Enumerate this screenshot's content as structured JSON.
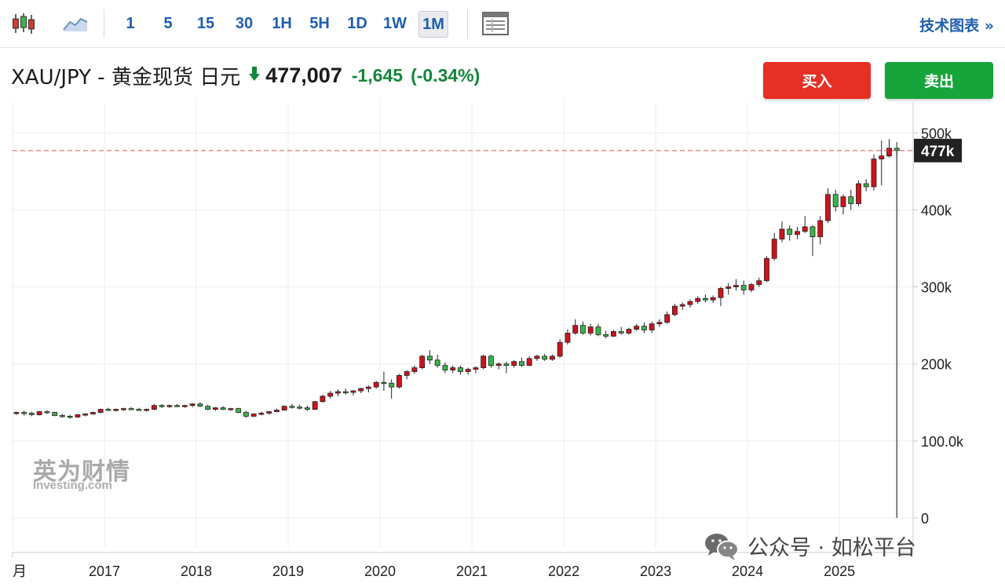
{
  "toolbar": {
    "timeframes": [
      "1",
      "5",
      "15",
      "30",
      "1H",
      "5H",
      "1D",
      "1W",
      "1M"
    ],
    "active_timeframe": "1M",
    "tech_link": "技术图表 »"
  },
  "instrument": {
    "name": "XAU/JPY - 黄金现货 日元",
    "price": "477,007",
    "change": "-1,645",
    "change_pct": "(-0.34%)",
    "direction": "down"
  },
  "actions": {
    "buy": "买入",
    "sell": "卖出"
  },
  "colors": {
    "up": "#17a43a",
    "down": "#d0121b",
    "accent": "#1f5fad",
    "price_tag": "#222222"
  },
  "watermark": {
    "brand": "英为财情",
    "sub": "Investing.com"
  },
  "wechat": {
    "label": "公众号 · 如松平台"
  },
  "chart_data": {
    "type": "candlestick",
    "interval": "1M",
    "price_tag": "477k",
    "y_ticks": [
      "0",
      "100.0k",
      "200k",
      "300k",
      "400k",
      "500k"
    ],
    "y_tick_values": [
      0,
      100000,
      200000,
      300000,
      400000,
      500000
    ],
    "x_ticks": [
      "月",
      "2017",
      "2018",
      "2019",
      "2020",
      "2021",
      "2022",
      "2023",
      "2024",
      "2025"
    ],
    "x_tick_values": [
      2016.0,
      2017.0,
      2018.0,
      2019.0,
      2020.0,
      2021.0,
      2022.0,
      2023.0,
      2024.0,
      2025.0
    ],
    "ylim": [
      0,
      540000
    ],
    "start": "2016-01",
    "grid": true,
    "candles": [
      [
        136000,
        138000,
        134000,
        137000
      ],
      [
        137000,
        139000,
        133000,
        136000
      ],
      [
        136000,
        138000,
        132000,
        134000
      ],
      [
        134000,
        139000,
        133000,
        138000
      ],
      [
        138000,
        140000,
        135000,
        137000
      ],
      [
        137000,
        138000,
        132000,
        133000
      ],
      [
        133000,
        135000,
        130000,
        132000
      ],
      [
        132000,
        134000,
        129000,
        131000
      ],
      [
        131000,
        135000,
        130000,
        134000
      ],
      [
        134000,
        136000,
        132000,
        135000
      ],
      [
        135000,
        138000,
        134000,
        137000
      ],
      [
        137000,
        142000,
        136000,
        141000
      ],
      [
        141000,
        143000,
        139000,
        140000
      ],
      [
        140000,
        142000,
        138000,
        141000
      ],
      [
        141000,
        143000,
        139000,
        142000
      ],
      [
        142000,
        144000,
        140000,
        141000
      ],
      [
        141000,
        143000,
        139000,
        140000
      ],
      [
        140000,
        142000,
        138000,
        141000
      ],
      [
        141000,
        148000,
        140000,
        146000
      ],
      [
        146000,
        148000,
        143000,
        145000
      ],
      [
        145000,
        147000,
        143000,
        146000
      ],
      [
        146000,
        148000,
        144000,
        145000
      ],
      [
        145000,
        147000,
        143000,
        146000
      ],
      [
        146000,
        149000,
        144000,
        148000
      ],
      [
        148000,
        150000,
        144000,
        145000
      ],
      [
        145000,
        147000,
        140000,
        141000
      ],
      [
        141000,
        144000,
        139000,
        143000
      ],
      [
        143000,
        145000,
        140000,
        141000
      ],
      [
        141000,
        143000,
        139000,
        142000
      ],
      [
        142000,
        143000,
        136000,
        137000
      ],
      [
        137000,
        139000,
        130000,
        132000
      ],
      [
        132000,
        136000,
        131000,
        135000
      ],
      [
        135000,
        138000,
        133000,
        136000
      ],
      [
        136000,
        139000,
        134000,
        138000
      ],
      [
        138000,
        142000,
        137000,
        140000
      ],
      [
        140000,
        146000,
        139000,
        145000
      ],
      [
        145000,
        148000,
        142000,
        144000
      ],
      [
        144000,
        147000,
        141000,
        143000
      ],
      [
        143000,
        146000,
        139000,
        141000
      ],
      [
        141000,
        152000,
        140000,
        151000
      ],
      [
        151000,
        160000,
        150000,
        158000
      ],
      [
        158000,
        165000,
        155000,
        162000
      ],
      [
        162000,
        167000,
        158000,
        164000
      ],
      [
        164000,
        168000,
        160000,
        163000
      ],
      [
        163000,
        166000,
        159000,
        165000
      ],
      [
        165000,
        169000,
        162000,
        168000
      ],
      [
        168000,
        172000,
        163000,
        170000
      ],
      [
        170000,
        178000,
        168000,
        176000
      ],
      [
        176000,
        190000,
        165000,
        175000
      ],
      [
        175000,
        180000,
        155000,
        170000
      ],
      [
        170000,
        187000,
        168000,
        185000
      ],
      [
        185000,
        192000,
        180000,
        190000
      ],
      [
        190000,
        198000,
        187000,
        195000
      ],
      [
        195000,
        212000,
        193000,
        210000
      ],
      [
        210000,
        218000,
        200000,
        205000
      ],
      [
        205000,
        212000,
        195000,
        198000
      ],
      [
        198000,
        202000,
        188000,
        192000
      ],
      [
        192000,
        198000,
        188000,
        195000
      ],
      [
        195000,
        198000,
        186000,
        190000
      ],
      [
        190000,
        195000,
        186000,
        193000
      ],
      [
        193000,
        197000,
        188000,
        195000
      ],
      [
        195000,
        212000,
        193000,
        210000
      ],
      [
        210000,
        212000,
        195000,
        198000
      ],
      [
        198000,
        202000,
        193000,
        200000
      ],
      [
        200000,
        203000,
        188000,
        198000
      ],
      [
        198000,
        205000,
        195000,
        203000
      ],
      [
        203000,
        208000,
        196000,
        198000
      ],
      [
        198000,
        210000,
        197000,
        207000
      ],
      [
        207000,
        212000,
        204000,
        210000
      ],
      [
        210000,
        213000,
        204000,
        206000
      ],
      [
        206000,
        212000,
        204000,
        210000
      ],
      [
        210000,
        232000,
        208000,
        228000
      ],
      [
        228000,
        245000,
        225000,
        240000
      ],
      [
        240000,
        258000,
        238000,
        250000
      ],
      [
        250000,
        255000,
        238000,
        240000
      ],
      [
        240000,
        252000,
        237000,
        248000
      ],
      [
        248000,
        252000,
        236000,
        238000
      ],
      [
        238000,
        243000,
        233000,
        236000
      ],
      [
        236000,
        244000,
        235000,
        242000
      ],
      [
        242000,
        248000,
        238000,
        240000
      ],
      [
        240000,
        247000,
        238000,
        245000
      ],
      [
        245000,
        252000,
        243000,
        249000
      ],
      [
        249000,
        254000,
        240000,
        244000
      ],
      [
        244000,
        255000,
        240000,
        252000
      ],
      [
        252000,
        258000,
        248000,
        254000
      ],
      [
        254000,
        268000,
        252000,
        264000
      ],
      [
        264000,
        278000,
        262000,
        275000
      ],
      [
        275000,
        280000,
        270000,
        277000
      ],
      [
        277000,
        284000,
        273000,
        281000
      ],
      [
        281000,
        288000,
        278000,
        285000
      ],
      [
        285000,
        290000,
        280000,
        283000
      ],
      [
        283000,
        289000,
        279000,
        286000
      ],
      [
        286000,
        300000,
        275000,
        298000
      ],
      [
        298000,
        305000,
        290000,
        300000
      ],
      [
        300000,
        310000,
        295000,
        302000
      ],
      [
        302000,
        308000,
        290000,
        296000
      ],
      [
        296000,
        305000,
        293000,
        303000
      ],
      [
        303000,
        312000,
        300000,
        308000
      ],
      [
        308000,
        340000,
        306000,
        337000
      ],
      [
        337000,
        370000,
        334000,
        362000
      ],
      [
        362000,
        385000,
        358000,
        375000
      ],
      [
        375000,
        380000,
        360000,
        368000
      ],
      [
        368000,
        378000,
        362000,
        372000
      ],
      [
        372000,
        392000,
        370000,
        378000
      ],
      [
        378000,
        380000,
        340000,
        365000
      ],
      [
        365000,
        392000,
        355000,
        386000
      ],
      [
        386000,
        428000,
        383000,
        420000
      ],
      [
        420000,
        426000,
        398000,
        404000
      ],
      [
        404000,
        420000,
        394000,
        417000
      ],
      [
        417000,
        426000,
        400000,
        408000
      ],
      [
        408000,
        438000,
        405000,
        434000
      ],
      [
        434000,
        440000,
        424000,
        430000
      ],
      [
        430000,
        472000,
        425000,
        466000
      ],
      [
        466000,
        490000,
        432000,
        470000
      ],
      [
        470000,
        492000,
        468000,
        480000
      ],
      [
        480000,
        488000,
        472000,
        477007
      ]
    ]
  }
}
